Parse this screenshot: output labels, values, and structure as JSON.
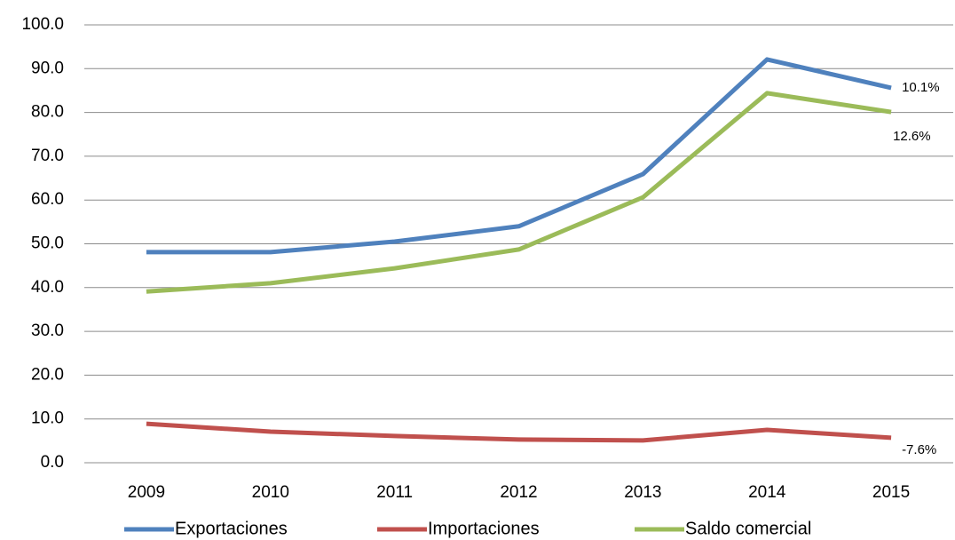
{
  "chart_data": {
    "type": "line",
    "categories": [
      "2009",
      "2010",
      "2011",
      "2012",
      "2013",
      "2014",
      "2015"
    ],
    "series": [
      {
        "name": "Exportaciones",
        "color": "#4f81bd",
        "values": [
          48.1,
          48.1,
          50.5,
          54.0,
          65.9,
          92.1,
          85.6
        ]
      },
      {
        "name": "Importaciones",
        "color": "#c0504d",
        "values": [
          8.9,
          7.1,
          6.1,
          5.3,
          5.1,
          7.5,
          5.7
        ]
      },
      {
        "name": "Saldo comercial",
        "color": "#9bbb59",
        "values": [
          39.1,
          41.0,
          44.4,
          48.7,
          60.6,
          84.4,
          80.1
        ]
      }
    ],
    "annotations": [
      "10.1%",
      "-7.6%",
      "12.6%"
    ],
    "ylim": [
      0,
      100
    ],
    "yticks": [
      {
        "value": 0,
        "label": "0.0"
      },
      {
        "value": 10,
        "label": "10.0"
      },
      {
        "value": 20,
        "label": "20.0"
      },
      {
        "value": 30,
        "label": "30.0"
      },
      {
        "value": 40,
        "label": "40.0"
      },
      {
        "value": 50,
        "label": "50.0"
      },
      {
        "value": 60,
        "label": "60.0"
      },
      {
        "value": 70,
        "label": "70.0"
      },
      {
        "value": 80,
        "label": "80.0"
      },
      {
        "value": 90,
        "label": "90.0"
      },
      {
        "value": 100,
        "label": "100.0"
      }
    ],
    "grid": true,
    "legend": "bottom"
  }
}
